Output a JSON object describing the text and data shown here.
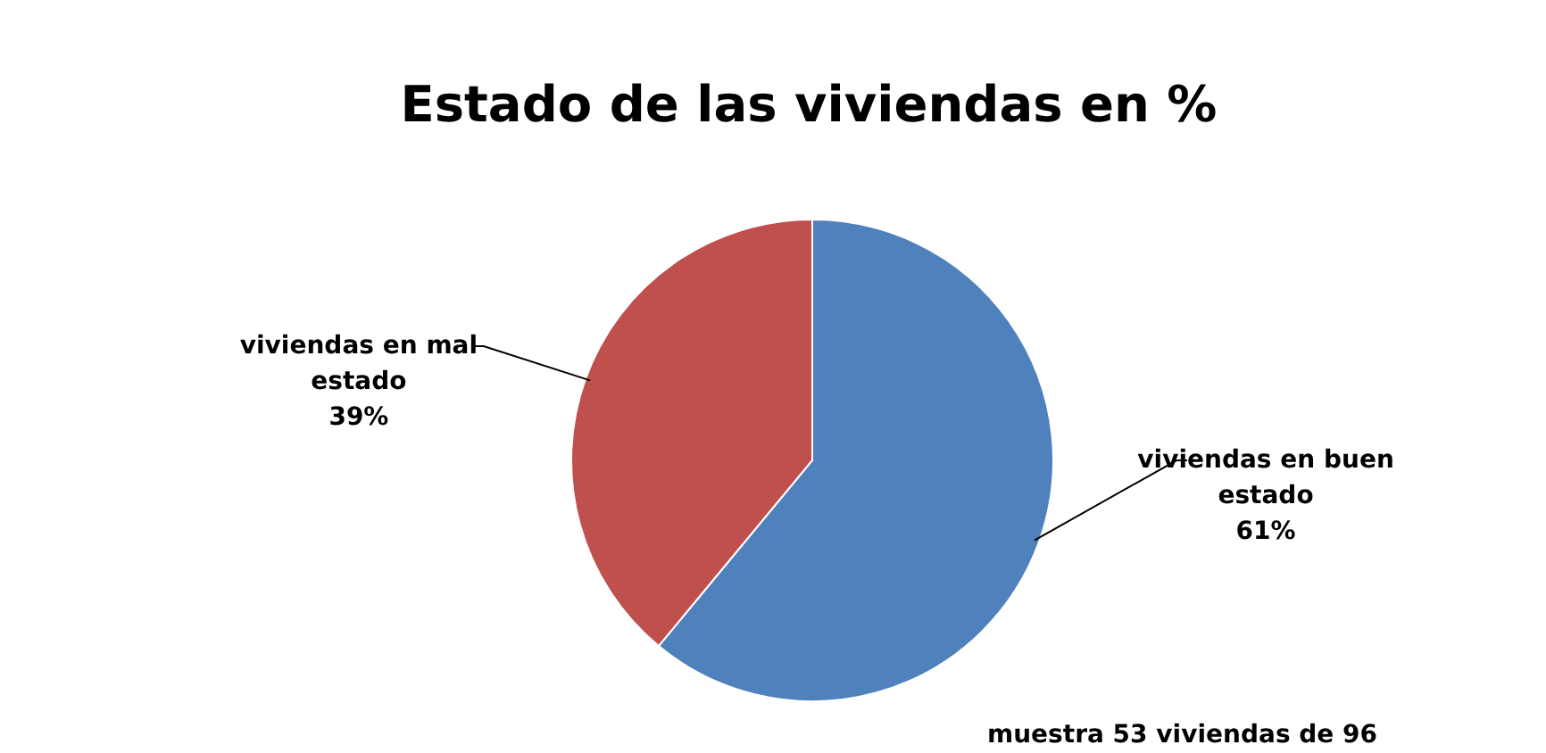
{
  "chart_data": {
    "type": "pie",
    "title": "Estado de las viviendas en %",
    "categories": [
      "viviendas en buen estado",
      "viviendas en mal estado"
    ],
    "values": [
      61,
      39
    ],
    "colors": [
      "#4f81bd",
      "#c0504d"
    ],
    "value_labels": [
      "61%",
      "39%"
    ],
    "annotations": [
      "muestra 53 viviendas de 96"
    ]
  }
}
